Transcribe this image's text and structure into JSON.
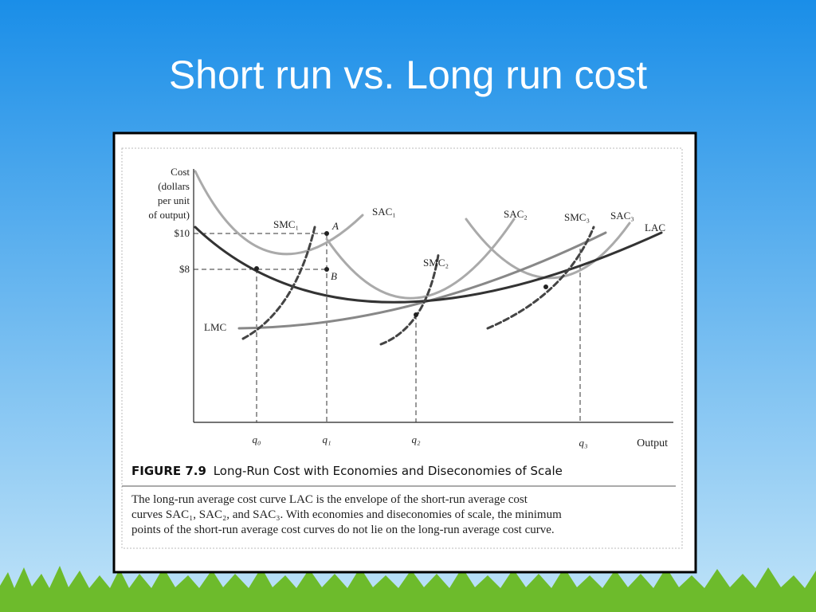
{
  "slide_title": "Short run vs. Long run cost",
  "figure": {
    "y_axis_label": [
      "Cost",
      "(dollars",
      "per unit",
      "of output)"
    ],
    "y_labels": [
      "$10",
      "$8"
    ],
    "x_axis_label": "Output",
    "x_labels": [
      "q₀",
      "q₁",
      "q₂",
      "q₃"
    ],
    "points": [
      "A",
      "B"
    ],
    "curves": [
      "SAC₁",
      "SMC₁",
      "SAC₂",
      "SMC₂",
      "SMC₃",
      "SAC₃",
      "LAC",
      "LMC"
    ],
    "caption_number": "FIGURE 7.9",
    "caption_title": "Long-Run Cost with Economies and Diseconomies of Scale",
    "description": [
      "The long-run average cost curve LAC is the envelope of the short-run average cost",
      "curves SAC₁, SAC₂, and SAC₃. With economies and diseconomies of scale, the minimum",
      "points of the short-run average cost curves do not lie on the long-run average cost curve."
    ]
  }
}
